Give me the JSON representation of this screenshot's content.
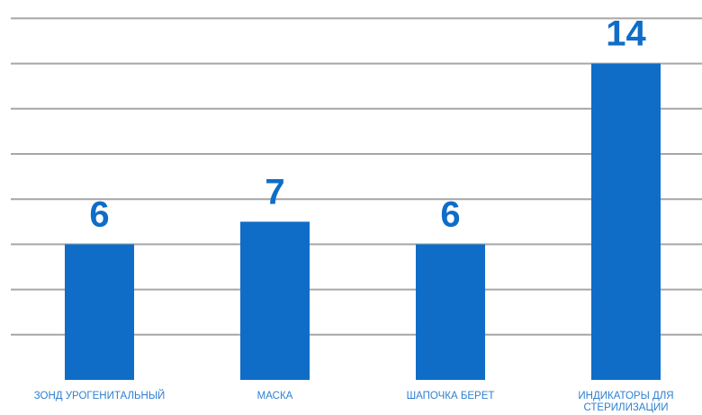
{
  "chart_data": {
    "type": "bar",
    "categories": [
      [
        "ЗОНД УРОГЕНИТАЛЬНЫЙ"
      ],
      [
        "МАСКА"
      ],
      [
        "ШАПОЧКА БЕРЕТ"
      ],
      [
        "ИНДИКАТОРЫ ДЛЯ",
        "СТЕРИЛИЗАЦИИ"
      ]
    ],
    "values": [
      6,
      7,
      6,
      14
    ],
    "data_labels": [
      "6",
      "7",
      "6",
      "14"
    ],
    "title": "",
    "xlabel": "",
    "ylabel": "",
    "ylim": [
      0,
      14
    ],
    "grid": true,
    "legend": "none",
    "colors": {
      "bar": "#0f6dc8",
      "label": "#0f6dc8",
      "category": "#2f7fd0",
      "grid": "#a6a6a6"
    }
  }
}
